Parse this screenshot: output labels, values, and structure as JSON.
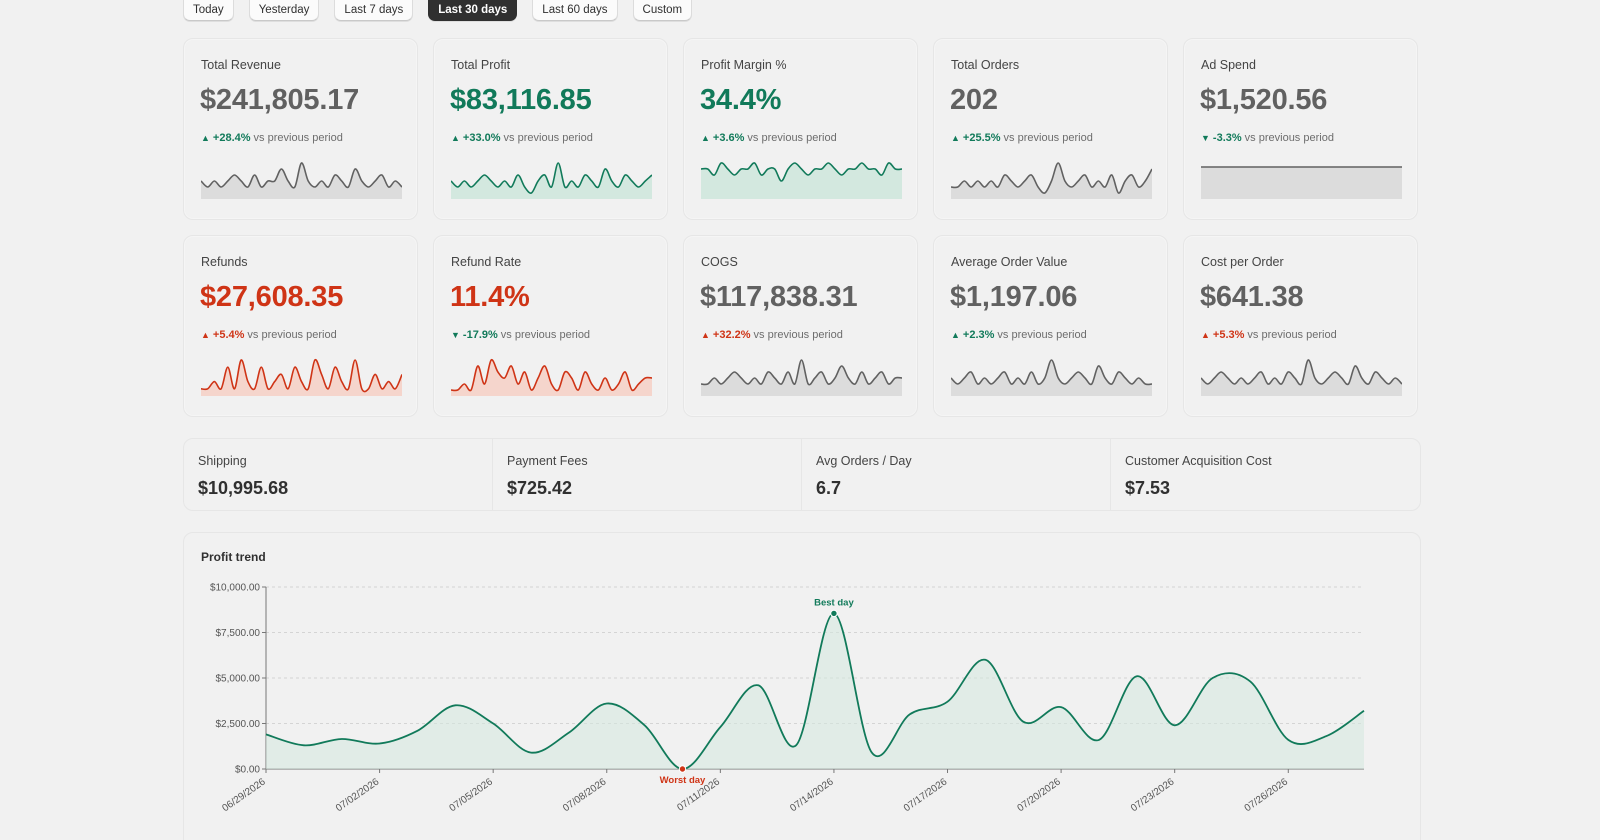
{
  "date_range": {
    "buttons": [
      "Today",
      "Yesterday",
      "Last 7 days",
      "Last 30 days",
      "Last 60 days",
      "Custom"
    ],
    "selected": "Last 30 days"
  },
  "kpis": [
    {
      "title": "Total Revenue",
      "value": "$241,805.17",
      "value_tone": "neutral",
      "arrow": "▲",
      "delta": "+28.4%",
      "delta_tone": "good",
      "suffix": "vs previous period",
      "spark_color": "#616161",
      "spark_fill": "#dcdcdc",
      "spark": [
        3,
        2,
        3,
        2,
        3,
        4,
        3,
        2,
        4,
        2,
        3,
        3,
        5,
        3,
        2,
        6,
        3,
        2,
        3,
        2,
        4,
        3,
        2,
        5,
        3,
        2,
        3,
        4,
        2,
        3,
        2
      ]
    },
    {
      "title": "Total Profit",
      "value": "$83,116.85",
      "value_tone": "pos",
      "arrow": "▲",
      "delta": "+33.0%",
      "delta_tone": "good",
      "suffix": "vs previous period",
      "spark_color": "#117a5a",
      "spark_fill": "#d3e8df",
      "spark": [
        3,
        2,
        3,
        2,
        3,
        4,
        3,
        2,
        3,
        2,
        4,
        2,
        1,
        3,
        4,
        2,
        6,
        2,
        3,
        2,
        4,
        3,
        2,
        5,
        3,
        2,
        4,
        3,
        2,
        3,
        4
      ]
    },
    {
      "title": "Profit Margin %",
      "value": "34.4%",
      "value_tone": "pos",
      "arrow": "▲",
      "delta": "+3.6%",
      "delta_tone": "good",
      "suffix": "vs previous period",
      "spark_color": "#117a5a",
      "spark_fill": "#d3e8df",
      "spark": [
        5,
        5,
        4,
        6,
        5,
        4,
        5,
        5,
        6,
        4,
        5,
        5,
        3,
        5,
        6,
        5,
        4,
        5,
        5,
        6,
        5,
        4,
        5,
        5,
        6,
        5,
        5,
        4,
        6,
        5,
        5
      ]
    },
    {
      "title": "Total Orders",
      "value": "202",
      "value_tone": "neutral",
      "arrow": "▲",
      "delta": "+25.5%",
      "delta_tone": "good",
      "suffix": "vs previous period",
      "spark_color": "#616161",
      "spark_fill": "#dcdcdc",
      "spark": [
        2,
        2,
        3,
        2,
        3,
        2,
        3,
        2,
        4,
        3,
        2,
        3,
        4,
        2,
        1,
        3,
        6,
        3,
        2,
        3,
        4,
        2,
        3,
        2,
        4,
        1,
        3,
        4,
        2,
        3,
        5
      ]
    },
    {
      "title": "Ad Spend",
      "value": "$1,520.56",
      "value_tone": "neutral",
      "arrow": "▼",
      "delta": "-3.3%",
      "delta_tone": "good",
      "suffix": "vs previous period",
      "spark_color": "#616161",
      "spark_fill": "#dcdcdc",
      "spark": [
        5,
        5,
        5,
        5,
        5,
        5,
        5,
        5,
        5,
        5,
        5,
        5,
        5,
        5,
        5,
        5,
        5,
        5,
        5,
        5,
        5,
        5,
        5,
        5,
        5,
        5,
        5,
        5,
        5,
        5,
        5
      ]
    },
    {
      "title": "Refunds",
      "value": "$27,608.35",
      "value_tone": "neg",
      "arrow": "▲",
      "delta": "+5.4%",
      "delta_tone": "bad",
      "suffix": "vs previous period",
      "spark_color": "#cf3416",
      "spark_fill": "#f5d5cc",
      "spark": [
        1,
        1,
        2,
        1,
        4,
        1,
        5,
        2,
        1,
        4,
        1,
        2,
        3,
        1,
        4,
        2,
        1,
        5,
        3,
        1,
        4,
        2,
        1,
        5,
        1,
        1,
        3,
        1,
        2,
        1,
        3
      ]
    },
    {
      "title": "Refund Rate",
      "value": "11.4%",
      "value_tone": "neg",
      "arrow": "▼",
      "delta": "-17.9%",
      "delta_tone": "good",
      "suffix": "vs previous period",
      "spark_color": "#cf3416",
      "spark_fill": "#f5d5cc",
      "spark": [
        1,
        1,
        2,
        1,
        5,
        2,
        6,
        4,
        3,
        5,
        2,
        4,
        1,
        3,
        5,
        2,
        1,
        4,
        3,
        1,
        4,
        2,
        1,
        3,
        1,
        2,
        4,
        1,
        2,
        3,
        3
      ]
    },
    {
      "title": "COGS",
      "value": "$117,838.31",
      "value_tone": "neutral",
      "arrow": "▲",
      "delta": "+32.2%",
      "delta_tone": "bad",
      "suffix": "vs previous period",
      "spark_color": "#616161",
      "spark_fill": "#dcdcdc",
      "spark": [
        2,
        2,
        3,
        2,
        3,
        4,
        3,
        2,
        3,
        2,
        4,
        3,
        2,
        4,
        2,
        6,
        2,
        3,
        4,
        2,
        3,
        5,
        3,
        2,
        4,
        2,
        3,
        4,
        2,
        3,
        3
      ]
    },
    {
      "title": "Average Order Value",
      "value": "$1,197.06",
      "value_tone": "neutral",
      "arrow": "▲",
      "delta": "+2.3%",
      "delta_tone": "good",
      "suffix": "vs previous period",
      "spark_color": "#616161",
      "spark_fill": "#dcdcdc",
      "spark": [
        3,
        2,
        3,
        4,
        2,
        3,
        2,
        3,
        4,
        2,
        3,
        2,
        4,
        2,
        3,
        6,
        3,
        2,
        3,
        4,
        3,
        2,
        5,
        3,
        2,
        4,
        3,
        2,
        3,
        2,
        2
      ]
    },
    {
      "title": "Cost per Order",
      "value": "$641.38",
      "value_tone": "neutral",
      "arrow": "▲",
      "delta": "+5.3%",
      "delta_tone": "bad",
      "suffix": "vs previous period",
      "spark_color": "#616161",
      "spark_fill": "#dcdcdc",
      "spark": [
        3,
        2,
        3,
        4,
        3,
        2,
        3,
        2,
        3,
        4,
        2,
        3,
        2,
        4,
        3,
        2,
        6,
        3,
        2,
        3,
        4,
        3,
        2,
        5,
        3,
        2,
        4,
        3,
        2,
        3,
        2
      ]
    }
  ],
  "secondary": [
    {
      "title": "Shipping",
      "value": "$10,995.68"
    },
    {
      "title": "Payment Fees",
      "value": "$725.42"
    },
    {
      "title": "Avg Orders / Day",
      "value": "6.7"
    },
    {
      "title": "Customer Acquisition Cost",
      "value": "$7.53"
    }
  ],
  "colors": {
    "good": "#117a5a",
    "bad": "#cf3416",
    "neutral": "#616161"
  },
  "profit_trend": {
    "title": "Profit trend",
    "chart_data": {
      "type": "area",
      "title": "Profit trend",
      "xlabel": "",
      "ylabel": "",
      "ylim": [
        0,
        10000
      ],
      "y_ticks": [
        "$0.00",
        "$2,500.00",
        "$5,000.00",
        "$7,500.00",
        "$10,000.00"
      ],
      "y_tick_values": [
        0,
        2500,
        5000,
        7500,
        10000
      ],
      "x_tick_labels": [
        "06/29/2026",
        "07/02/2026",
        "07/05/2026",
        "07/08/2026",
        "07/11/2026",
        "07/14/2026",
        "07/17/2026",
        "07/20/2026",
        "07/23/2026",
        "07/26/2026"
      ],
      "x_tick_indices": [
        0,
        3,
        6,
        9,
        12,
        15,
        18,
        21,
        24,
        27
      ],
      "x": [
        "06/29/2026",
        "06/30/2026",
        "07/01/2026",
        "07/02/2026",
        "07/03/2026",
        "07/04/2026",
        "07/05/2026",
        "07/06/2026",
        "07/07/2026",
        "07/08/2026",
        "07/09/2026",
        "07/10/2026",
        "07/11/2026",
        "07/12/2026",
        "07/13/2026",
        "07/14/2026",
        "07/15/2026",
        "07/16/2026",
        "07/17/2026",
        "07/18/2026",
        "07/19/2026",
        "07/20/2026",
        "07/21/2026",
        "07/22/2026",
        "07/23/2026",
        "07/24/2026",
        "07/25/2026",
        "07/26/2026",
        "07/27/2026",
        "07/28/2026"
      ],
      "values": [
        1900,
        1300,
        1650,
        1400,
        2100,
        3500,
        2500,
        900,
        2000,
        3600,
        2400,
        0,
        2300,
        4600,
        1300,
        8550,
        900,
        3000,
        3700,
        6000,
        2600,
        3400,
        1600,
        5100,
        2400,
        5000,
        4800,
        1600,
        1800,
        3200
      ],
      "line_color": "#117a5a",
      "fill_color": "#d3e8df",
      "annotations": [
        {
          "label": "Best day",
          "index": 15,
          "color": "#117a5a"
        },
        {
          "label": "Worst day",
          "index": 11,
          "color": "#cf3416"
        }
      ]
    }
  }
}
